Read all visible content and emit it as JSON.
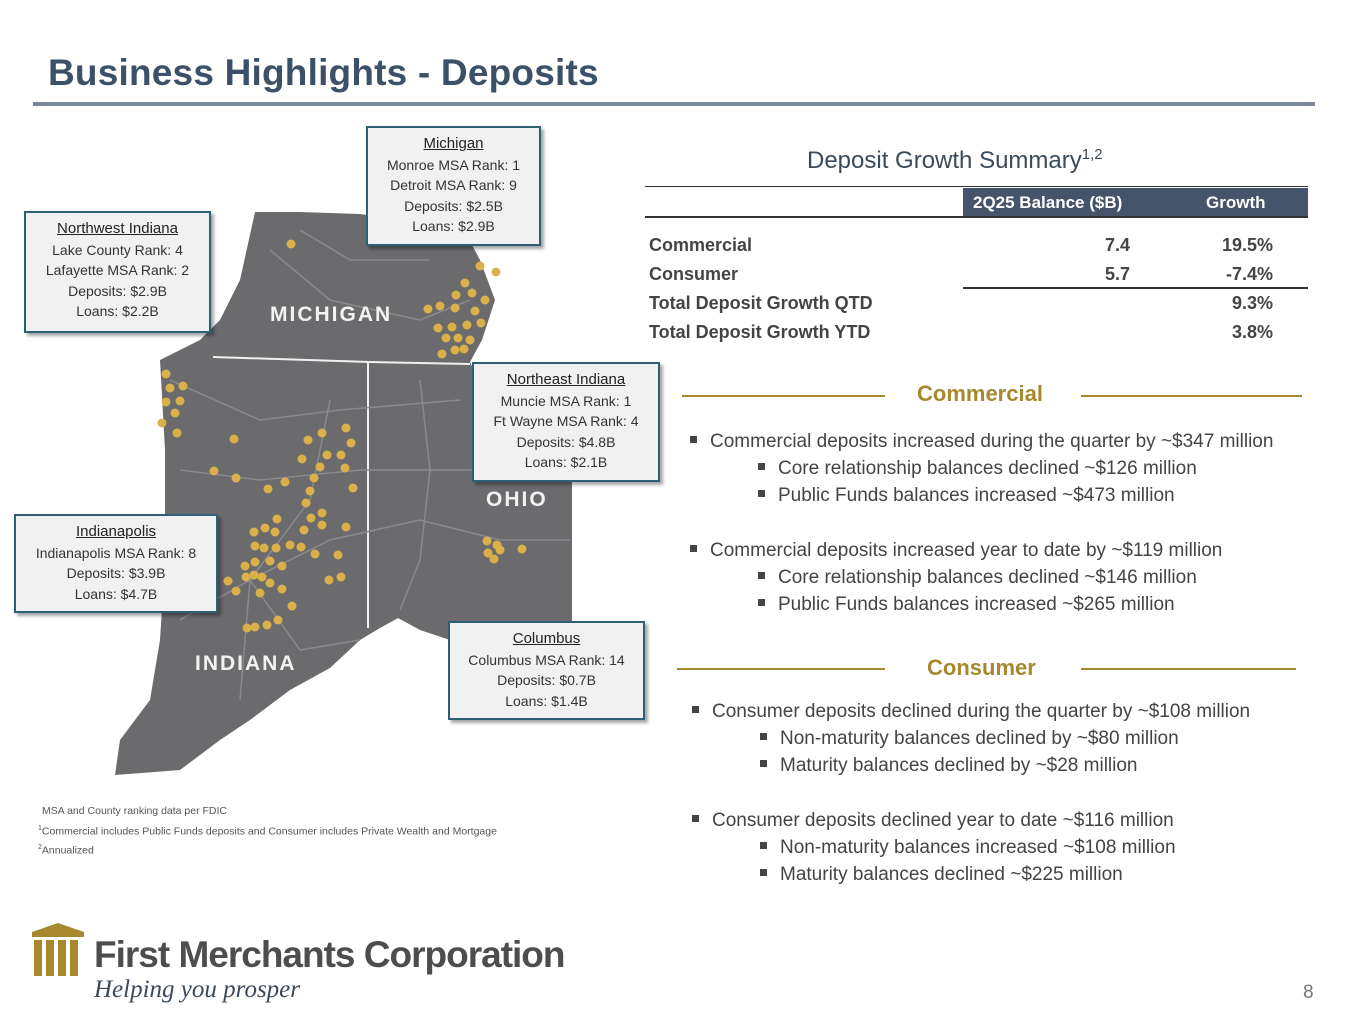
{
  "title": "Business Highlights - Deposits",
  "colors": {
    "title": "#3c5068",
    "accent": "#a6892e",
    "table_header": "#44546a",
    "map_fill": "#6b6b6e",
    "dot": "#d9b04a"
  },
  "map": {
    "labels": {
      "michigan": "MICHIGAN",
      "ohio": "OHIO",
      "indiana": "INDIANA"
    },
    "callouts": {
      "michigan": {
        "name": "Michigan",
        "lines": [
          "Monroe MSA Rank: 1",
          "Detroit MSA Rank: 9",
          "Deposits: $2.5B",
          "Loans: $2.9B"
        ]
      },
      "northwest_indiana": {
        "name": "Northwest Indiana",
        "lines": [
          "Lake County Rank: 4",
          "Lafayette MSA Rank: 2",
          "Deposits: $2.9B",
          "Loans: $2.2B"
        ]
      },
      "northeast_indiana": {
        "name": "Northeast Indiana",
        "lines": [
          "Muncie MSA Rank: 1",
          "Ft Wayne MSA Rank: 4",
          "Deposits: $4.8B",
          "Loans: $2.1B"
        ]
      },
      "indianapolis": {
        "name": "Indianapolis",
        "lines": [
          "Indianapolis MSA Rank: 8",
          "Deposits: $3.9B",
          "Loans: $4.7B"
        ]
      },
      "columbus": {
        "name": "Columbus",
        "lines": [
          "Columbus MSA Rank: 14",
          "Deposits: $0.7B",
          "Loans: $1.4B"
        ]
      }
    }
  },
  "notes": {
    "line1": "MSA and County ranking data per FDIC",
    "line2_mark": "1",
    "line2": "Commercial includes Public Funds deposits and Consumer includes Private Wealth and Mortgage",
    "line3_mark": "2",
    "line3": "Annualized"
  },
  "table": {
    "title": "Deposit Growth Summary",
    "title_sup": "1,2",
    "headers": {
      "balance": "2Q25 Balance ($B)",
      "growth": "Growth"
    },
    "rows": [
      {
        "label": "Commercial",
        "balance": "7.4",
        "growth": "19.5%"
      },
      {
        "label": "Consumer",
        "balance": "5.7",
        "growth": "-7.4%"
      },
      {
        "label": "Total Deposit Growth QTD",
        "balance": "",
        "growth": "9.3%"
      },
      {
        "label": "Total Deposit Growth YTD",
        "balance": "",
        "growth": "3.8%"
      }
    ]
  },
  "commercial": {
    "heading": "Commercial",
    "bullets": [
      "Commercial deposits increased during the quarter by ~$347 million",
      "Core relationship balances declined ~$126 million",
      "Public Funds balances increased ~$473 million",
      "Commercial deposits increased year to date by ~$119 million",
      "Core relationship balances declined ~$146 million",
      "Public Funds balances increased ~$265 million"
    ]
  },
  "consumer": {
    "heading": "Consumer",
    "bullets": [
      "Consumer deposits declined during the quarter by ~$108 million",
      "Non-maturity balances declined by ~$80 million",
      "Maturity balances declined by ~$28 million",
      "Consumer deposits declined year to date ~$116 million",
      "Non-maturity balances increased ~$108 million",
      "Maturity balances declined ~$225 million"
    ]
  },
  "logo": {
    "name": "First Merchants Corporation",
    "tagline": "Helping you prosper",
    "icon": "building-columns-icon"
  },
  "page_number": "8"
}
